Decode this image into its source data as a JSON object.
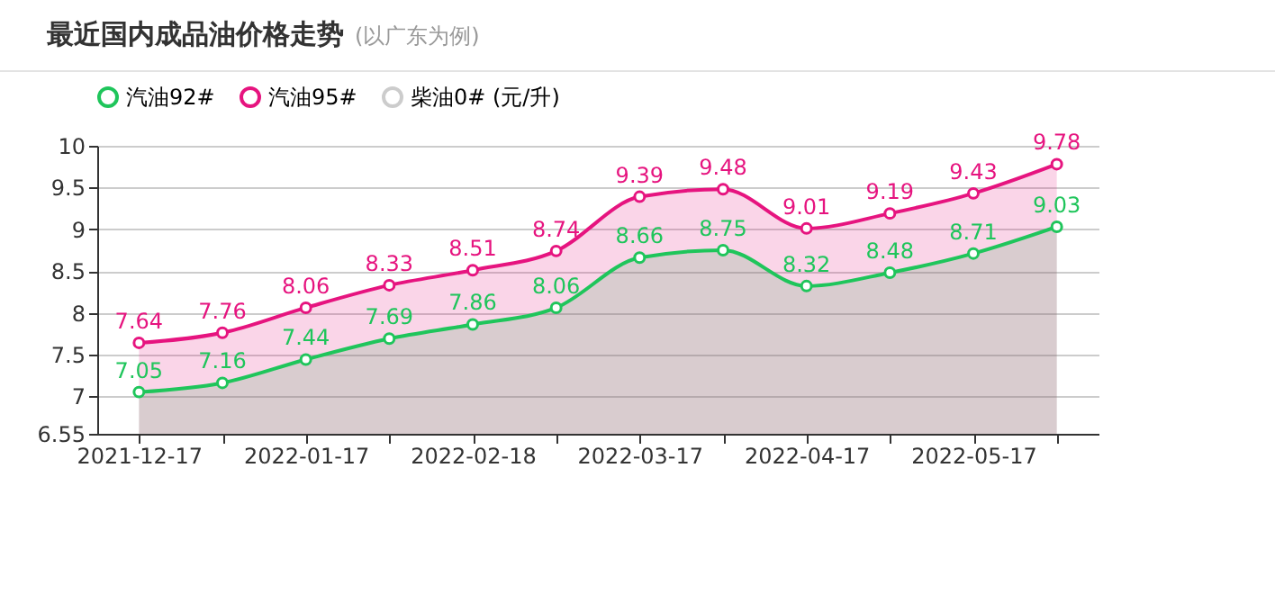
{
  "chart_data": {
    "type": "area",
    "title": "最近国内成品油价格走势",
    "subtitle": "(以广东为例)",
    "categories": [
      "2021-12-17",
      null,
      "2022-01-17",
      null,
      "2022-02-18",
      null,
      "2022-03-17",
      null,
      "2022-04-17",
      null,
      "2022-05-17",
      null
    ],
    "series": [
      {
        "name": "汽油92#",
        "color": "#1fc55b",
        "values": [
          7.05,
          7.16,
          7.44,
          7.69,
          7.86,
          8.06,
          8.66,
          8.75,
          8.32,
          8.48,
          8.71,
          9.03
        ]
      },
      {
        "name": "汽油95#",
        "color": "#e6147f",
        "values": [
          7.64,
          7.76,
          8.06,
          8.33,
          8.51,
          8.74,
          9.39,
          9.48,
          9.01,
          9.19,
          9.43,
          9.78
        ]
      },
      {
        "name": "柴油0# (元/升)",
        "color": "#cccccc",
        "values": [
          null,
          null,
          null,
          null,
          null,
          null,
          null,
          null,
          null,
          null,
          null,
          null
        ]
      }
    ],
    "ylim": [
      6.55,
      10
    ],
    "yticks": [
      6.55,
      7,
      7.5,
      8,
      8.5,
      9,
      9.5,
      10
    ],
    "grid": "y",
    "legend": "top",
    "marker": "circle",
    "data_labels": true
  }
}
